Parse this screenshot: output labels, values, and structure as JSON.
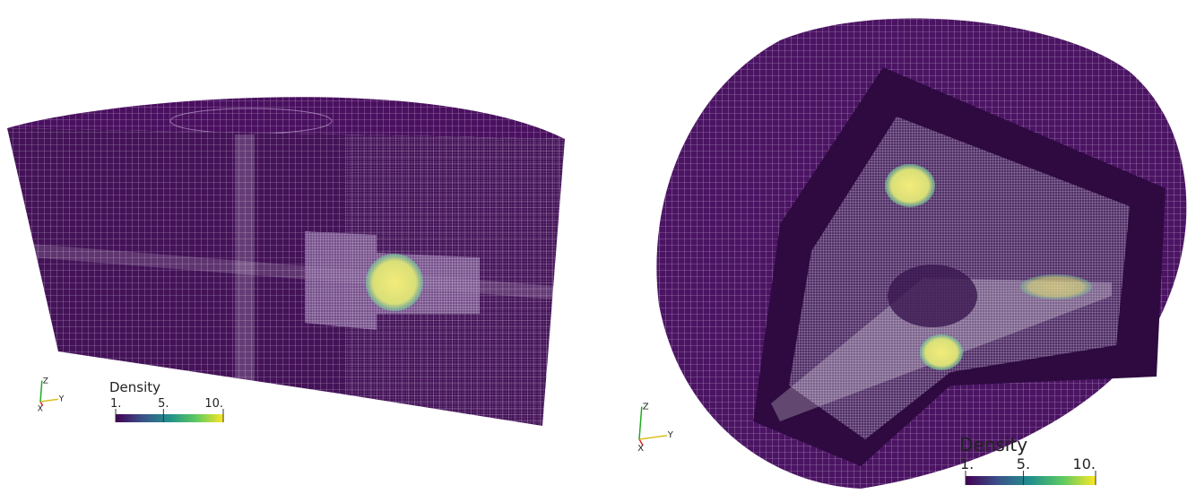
{
  "panels": [
    {
      "colorbar": {
        "title": "Density",
        "ticks": [
          {
            "value": 1,
            "label": "1."
          },
          {
            "value": 5,
            "label": "5."
          },
          {
            "value": 10,
            "label": "10."
          }
        ]
      },
      "axes": {
        "x": "X",
        "y": "Y",
        "z": "Z"
      }
    },
    {
      "colorbar": {
        "title": "Density",
        "ticks": [
          {
            "value": 1,
            "label": "1."
          },
          {
            "value": 5,
            "label": "5."
          },
          {
            "value": 10,
            "label": "10."
          }
        ]
      },
      "axes": {
        "x": "X",
        "y": "Y",
        "z": "Z"
      }
    }
  ]
}
